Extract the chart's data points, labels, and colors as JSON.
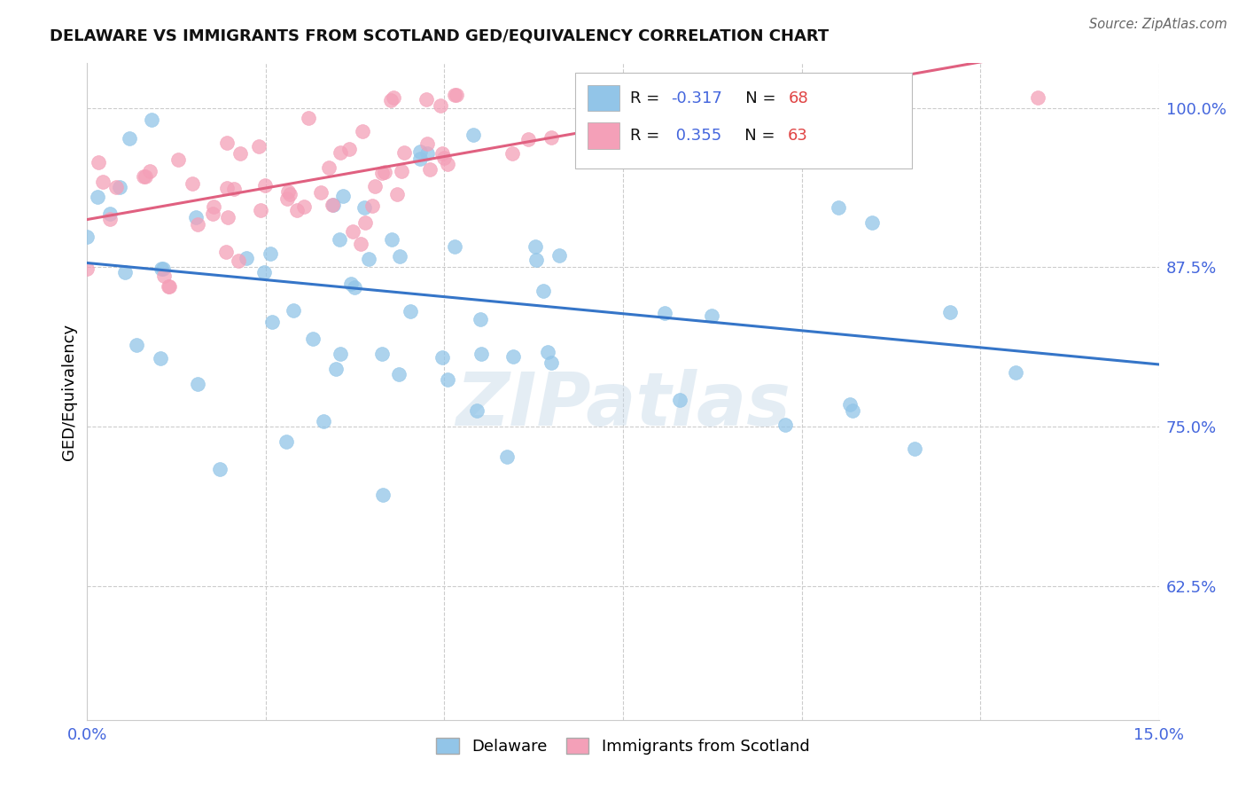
{
  "title": "DELAWARE VS IMMIGRANTS FROM SCOTLAND GED/EQUIVALENCY CORRELATION CHART",
  "source": "Source: ZipAtlas.com",
  "ylabel": "GED/Equivalency",
  "xmin": 0.0,
  "xmax": 0.15,
  "ymin": 0.52,
  "ymax": 1.035,
  "R_delaware": -0.317,
  "N_delaware": 68,
  "R_scotland": 0.355,
  "N_scotland": 63,
  "delaware_color": "#92C5E8",
  "scotland_color": "#F4A0B8",
  "delaware_line_color": "#3575C8",
  "scotland_line_color": "#E06080",
  "legend_label_1": "Delaware",
  "legend_label_2": "Immigrants from Scotland",
  "watermark": "ZIPatlas",
  "background_color": "#FFFFFF",
  "grid_color": "#CCCCCC",
  "title_color": "#111111",
  "source_color": "#666666",
  "tick_color": "#4466DD",
  "legend_R_color": "#000000",
  "legend_val_color": "#4466DD",
  "legend_N_color": "#000000",
  "legend_Nval_color": "#E04444"
}
